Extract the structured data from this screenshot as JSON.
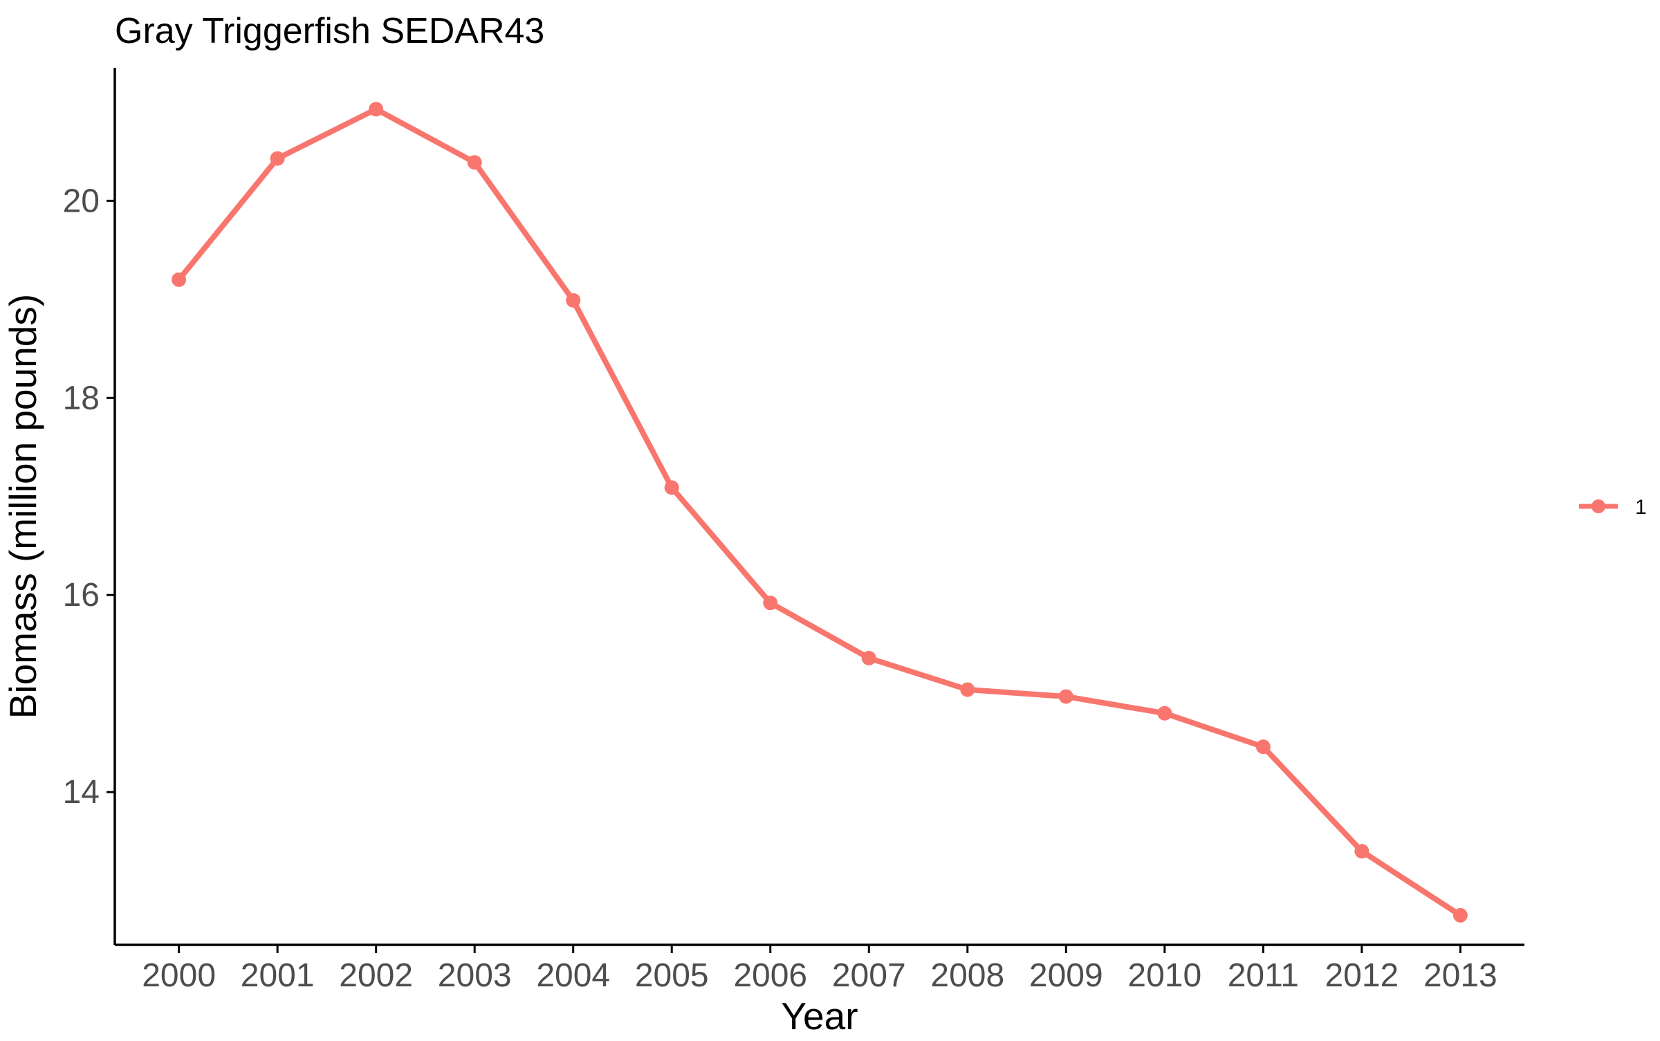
{
  "chart_data": {
    "type": "line",
    "title": "Gray Triggerfish SEDAR43",
    "xlabel": "Year",
    "ylabel": "Biomass (million pounds)",
    "x": [
      2000,
      2001,
      2002,
      2003,
      2004,
      2005,
      2006,
      2007,
      2008,
      2009,
      2010,
      2011,
      2012,
      2013
    ],
    "x_tick_labels": [
      "2000",
      "2001",
      "2002",
      "2003",
      "2004",
      "2005",
      "2006",
      "2007",
      "2008",
      "2009",
      "2010",
      "2011",
      "2012",
      "2013"
    ],
    "series": [
      {
        "name": "1",
        "values": [
          19.2,
          20.43,
          20.93,
          20.39,
          18.99,
          17.09,
          15.92,
          15.36,
          15.04,
          14.97,
          14.8,
          14.46,
          13.4,
          12.75
        ]
      }
    ],
    "y_ticks": [
      14,
      16,
      18,
      20
    ],
    "y_tick_labels": [
      "14",
      "16",
      "18",
      "20"
    ],
    "ylim": [
      12.45,
      21.35
    ],
    "xlim": [
      1999.35,
      2013.65
    ],
    "grid": false,
    "legend_position": "right",
    "colors": {
      "series": "#f8766d",
      "axis": "#000000",
      "tick_text": "#4d4d4d"
    }
  }
}
